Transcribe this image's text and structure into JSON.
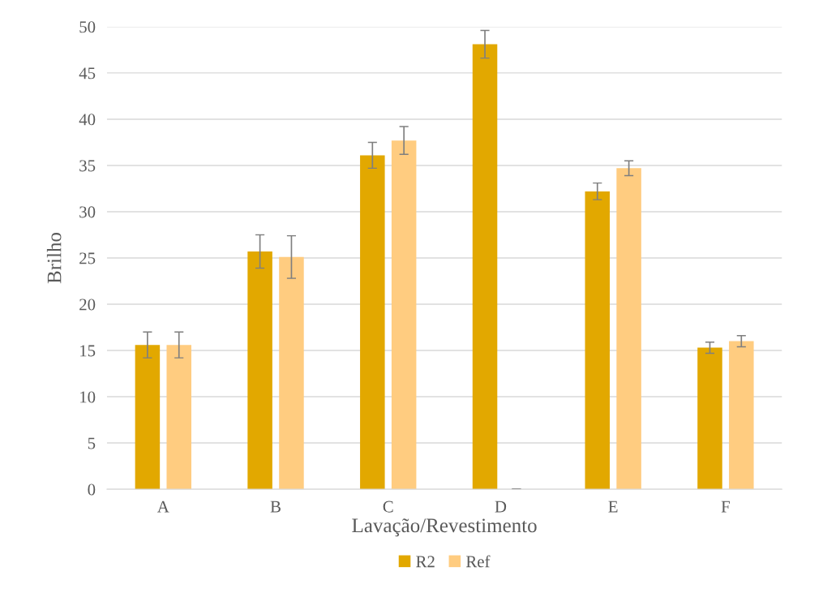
{
  "chart_data": {
    "type": "bar",
    "xlabel": "Lavação/Revestimento",
    "ylabel": "Brilho",
    "categories": [
      "A",
      "B",
      "C",
      "D",
      "E",
      "F"
    ],
    "series": [
      {
        "name": "R2",
        "color": "#e2a800",
        "values": [
          15.6,
          25.7,
          36.1,
          48.1,
          32.2,
          15.3
        ],
        "errors": [
          1.4,
          1.8,
          1.4,
          1.5,
          0.9,
          0.6
        ]
      },
      {
        "name": "Ref",
        "color": "#ffcc80",
        "values": [
          15.6,
          25.1,
          37.7,
          0,
          34.7,
          16.0
        ],
        "errors": [
          1.4,
          2.3,
          1.5,
          0,
          0.8,
          0.6
        ]
      }
    ],
    "ylim": [
      0,
      50
    ],
    "yticks": [
      0,
      5,
      10,
      15,
      20,
      25,
      30,
      35,
      40,
      45,
      50
    ],
    "grid": "y",
    "legend": "bottom"
  }
}
